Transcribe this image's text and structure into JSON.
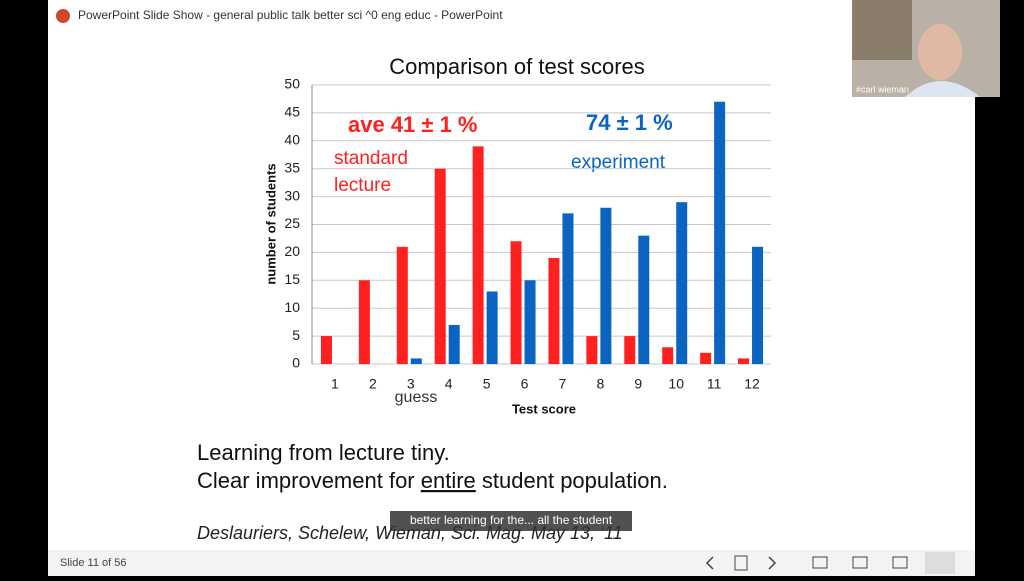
{
  "window": {
    "title": "PowerPoint Slide Show  -  general public talk better sci ^0 eng educ  -  PowerPoint",
    "status": "Slide 11 of 56"
  },
  "webcam": {
    "label": "#carl wieman"
  },
  "chart_data": {
    "type": "bar",
    "title": "Comparison of test scores",
    "x_label": "Test score",
    "y_label": "number of students",
    "categories": [
      "1",
      "2",
      "3",
      "4",
      "5",
      "6",
      "7",
      "8",
      "9",
      "10",
      "11",
      "12"
    ],
    "series": [
      {
        "name": "standard lecture",
        "color": "#ff2020",
        "values": [
          5,
          15,
          21,
          35,
          39,
          22,
          19,
          5,
          5,
          3,
          2,
          1
        ]
      },
      {
        "name": "experiment",
        "color": "#0a64c0",
        "values": [
          0,
          0,
          1,
          7,
          13,
          15,
          27,
          28,
          23,
          29,
          47,
          21
        ]
      }
    ],
    "annotations": [
      "ave 41 ± 1 %",
      "74 ± 1 %",
      "standard",
      "lecture",
      "experiment",
      "guess"
    ],
    "ylim": [
      0,
      50
    ],
    "yticks": [
      0,
      5,
      10,
      15,
      20,
      25,
      30,
      35,
      40,
      45,
      50
    ],
    "grid": true
  },
  "slide": {
    "line1": "Learning from lecture tiny.",
    "line2": [
      "Clear improvement for ",
      "entire",
      " student population."
    ],
    "citation": "Deslauriers, Schelew, Wieman, Sci. Mag.  May 13, ‘11",
    "caption": "better learning for the... all the student"
  }
}
